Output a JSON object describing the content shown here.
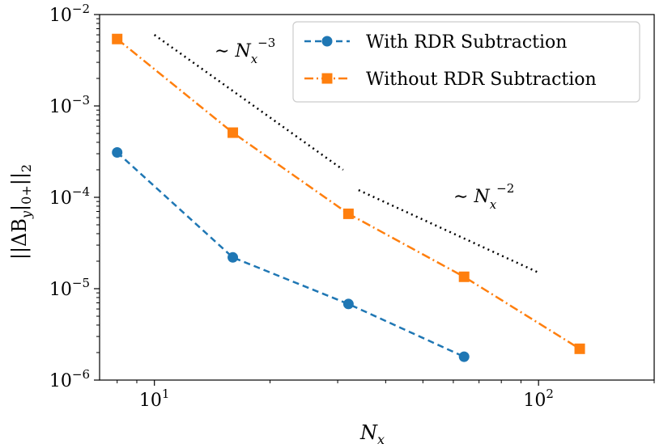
{
  "chart_data": {
    "type": "line",
    "xscale": "log",
    "yscale": "log",
    "xlim": [
      7.2,
      200
    ],
    "ylim": [
      1e-06,
      0.01
    ],
    "xlabel": "N_x",
    "ylabel": "||ΔB_y|0+||_2",
    "x_ticks": [
      {
        "value": 10,
        "base": "10",
        "exp": "1"
      },
      {
        "value": 100,
        "base": "10",
        "exp": "2"
      }
    ],
    "y_ticks": [
      {
        "value": 0.01,
        "base": "10",
        "exp": "−2"
      },
      {
        "value": 0.001,
        "base": "10",
        "exp": "−3"
      },
      {
        "value": 0.0001,
        "base": "10",
        "exp": "−4"
      },
      {
        "value": 1e-05,
        "base": "10",
        "exp": "−5"
      },
      {
        "value": 1e-06,
        "base": "10",
        "exp": "−6"
      }
    ],
    "series": [
      {
        "name": "With RDR Subtraction",
        "color": "#1f77b4",
        "marker": "circle",
        "linestyle": "dashed",
        "x": [
          8,
          16,
          32,
          64
        ],
        "y": [
          0.00031,
          2.2e-05,
          6.8e-06,
          1.8e-06
        ]
      },
      {
        "name": "Without RDR Subtraction",
        "color": "#ff7f0e",
        "marker": "square",
        "linestyle": "dashdot",
        "x": [
          8,
          16,
          32,
          64,
          128
        ],
        "y": [
          0.0054,
          0.00051,
          6.6e-05,
          1.35e-05,
          2.2e-06
        ]
      }
    ],
    "reference_lines": [
      {
        "label": "~ N_x^-3",
        "x": [
          10,
          31
        ],
        "y": [
          0.006,
          0.0002
        ],
        "color": "#000000"
      },
      {
        "label": "~ N_x^-2",
        "x": [
          34,
          100
        ],
        "y": [
          0.00012,
          1.5e-05
        ],
        "color": "#000000"
      }
    ],
    "annotations": [
      {
        "text": "∼ N",
        "sub": "x",
        "sup": "−3"
      },
      {
        "text": "∼ N",
        "sub": "x",
        "sup": "−2"
      }
    ],
    "legend": {
      "position": "top-right"
    },
    "grid": false
  }
}
